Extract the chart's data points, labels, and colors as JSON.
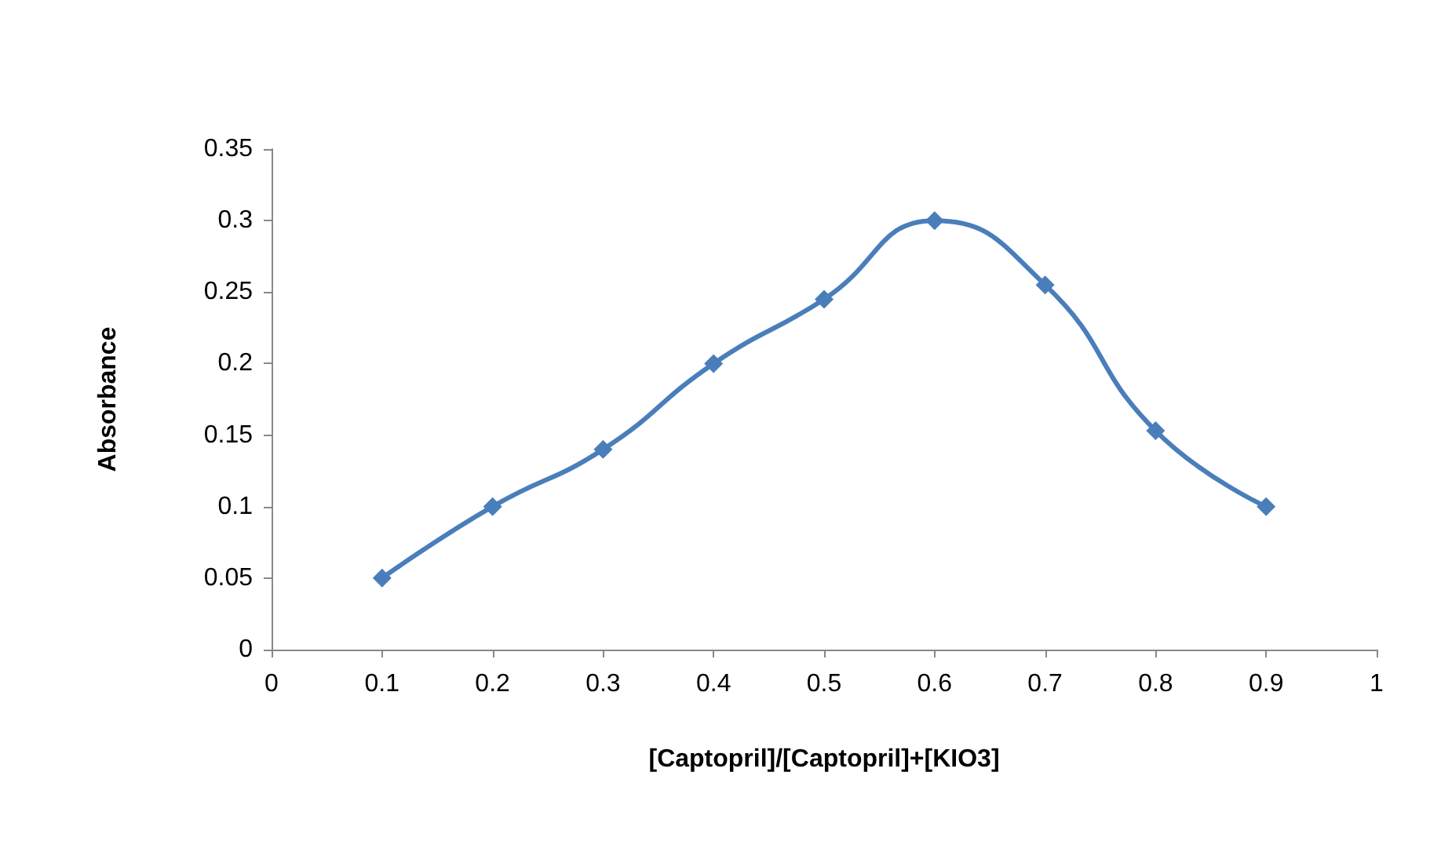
{
  "chart_data": {
    "type": "line",
    "xlabel": "[Captopril]/[Captopril]+[KIO3]",
    "ylabel": "Absorbance",
    "x": [
      0.1,
      0.2,
      0.3,
      0.4,
      0.5,
      0.6,
      0.7,
      0.8,
      0.9
    ],
    "series": [
      {
        "color": "#4a7ebb",
        "values": [
          0.05,
          0.1,
          0.14,
          0.2,
          0.245,
          0.3,
          0.255,
          0.153,
          0.1
        ]
      }
    ],
    "xlim": [
      0,
      1
    ],
    "xticks": [
      0,
      0.1,
      0.2,
      0.3,
      0.4,
      0.5,
      0.6,
      0.7,
      0.8,
      0.9,
      1
    ],
    "ylim": [
      0,
      0.35
    ],
    "yticks": [
      0,
      0.05,
      0.1,
      0.15,
      0.2,
      0.25,
      0.3,
      0.35
    ],
    "grid": false,
    "marker": "diamond",
    "line_style": "solid"
  }
}
